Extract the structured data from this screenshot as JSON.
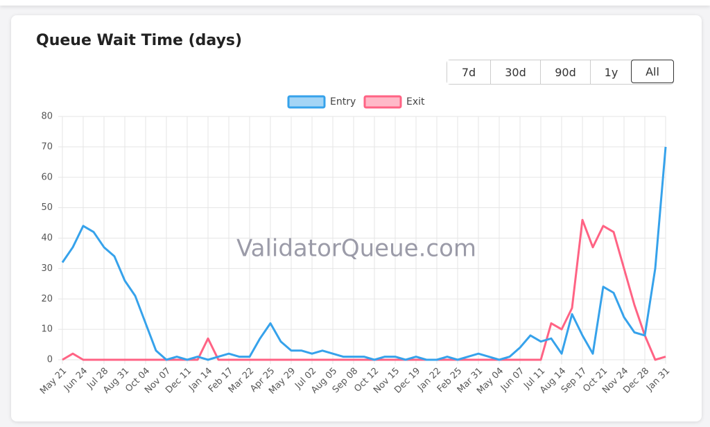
{
  "header": {
    "title": "Queue Wait Time (days)",
    "ranges": [
      "7d",
      "30d",
      "90d",
      "1y",
      "All"
    ]
  },
  "chart_data": {
    "type": "line",
    "watermark": "ValidatorQueue.com",
    "categories": [
      "May 21",
      null,
      "Jun 24",
      null,
      "Jul 28",
      null,
      "Aug 31",
      null,
      "Oct 04",
      null,
      "Nov 07",
      null,
      "Dec 11",
      null,
      "Jan 14",
      null,
      "Feb 17",
      null,
      "Mar 22",
      null,
      "Apr 25",
      null,
      "May 29",
      null,
      "Jul 02",
      null,
      "Aug 05",
      null,
      "Sep 08",
      null,
      "Oct 12",
      null,
      "Nov 15",
      null,
      "Dec 19",
      null,
      "Jan 22",
      null,
      "Feb 25",
      null,
      "Mar 31",
      null,
      "May 04",
      null,
      "Jun 07",
      null,
      "Jul 11",
      null,
      "Aug 14",
      null,
      "Sep 17",
      null,
      "Oct 21",
      null,
      "Nov 24",
      null,
      "Dec 28",
      null,
      "Jan 31"
    ],
    "series": [
      {
        "name": "Entry",
        "color": "#36a2eb",
        "values": [
          32,
          37,
          44,
          42,
          37,
          34,
          26,
          21,
          12,
          3,
          0,
          1,
          0,
          1,
          0,
          1,
          2,
          1,
          1,
          7,
          12,
          6,
          3,
          3,
          2,
          3,
          2,
          1,
          1,
          1,
          0,
          1,
          1,
          0,
          1,
          0,
          0,
          1,
          0,
          1,
          2,
          1,
          0,
          1,
          4,
          8,
          6,
          7,
          2,
          15,
          8,
          2,
          24,
          22,
          14,
          9,
          8,
          30,
          70
        ]
      },
      {
        "name": "Exit",
        "color": "#ff6384",
        "values": [
          0,
          2,
          0,
          0,
          0,
          0,
          0,
          0,
          0,
          0,
          0,
          0,
          0,
          0,
          7,
          0,
          0,
          0,
          0,
          0,
          0,
          0,
          0,
          0,
          0,
          0,
          0,
          0,
          0,
          0,
          0,
          0,
          0,
          0,
          0,
          0,
          0,
          0,
          0,
          0,
          0,
          0,
          0,
          0,
          0,
          0,
          0,
          12,
          10,
          17,
          46,
          37,
          44,
          42,
          30,
          18,
          8,
          0,
          1
        ]
      }
    ],
    "ylim": [
      0,
      80
    ],
    "yticks": [
      0,
      10,
      20,
      30,
      40,
      50,
      60,
      70,
      80
    ],
    "grid": true
  }
}
